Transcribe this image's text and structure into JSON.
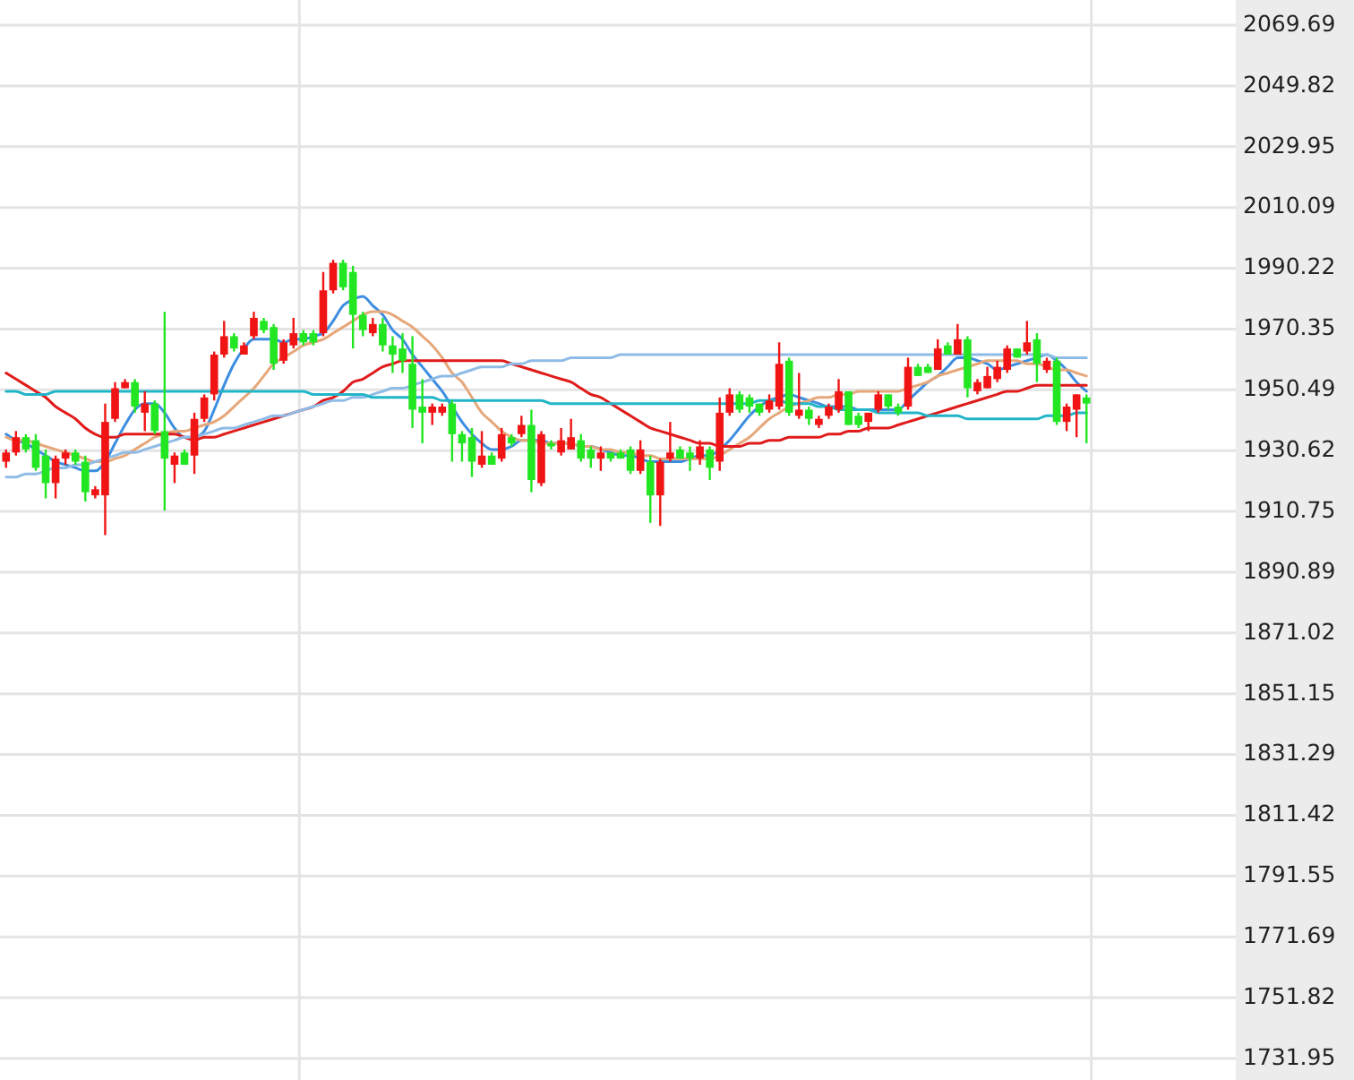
{
  "chart_data": {
    "type": "candlestick",
    "categories": [
      null,
      null,
      null,
      null,
      null,
      null,
      null,
      null,
      null,
      null,
      null,
      null,
      null,
      null,
      null,
      null,
      null,
      null,
      null,
      null,
      null,
      null,
      null,
      null,
      null,
      null,
      null,
      null,
      null,
      null,
      null,
      null,
      null,
      null,
      null,
      null,
      null,
      null,
      null,
      null,
      null,
      null,
      null,
      null,
      null,
      null,
      null,
      null,
      null,
      null,
      null,
      null,
      null,
      null,
      null,
      null,
      null,
      null,
      null,
      null,
      null,
      null,
      null,
      null,
      null,
      null,
      null,
      null,
      null,
      null,
      null,
      null,
      null,
      null,
      null,
      null,
      null,
      null,
      null,
      null,
      null,
      null,
      null,
      null,
      null,
      null,
      null,
      null,
      null,
      null,
      null,
      null,
      null,
      null,
      null,
      null,
      null,
      null,
      null,
      null,
      null,
      null,
      null,
      null,
      null,
      null,
      null,
      null,
      null,
      null
    ],
    "ohlc": [
      [
        1927,
        1931,
        1925,
        1930
      ],
      [
        1930,
        1937,
        1929,
        1935
      ],
      [
        1935,
        1936,
        1930,
        1931
      ],
      [
        1934,
        1936,
        1924,
        1925
      ],
      [
        1929,
        1931,
        1915,
        1920
      ],
      [
        1920,
        1929,
        1915,
        1928
      ],
      [
        1928,
        1931,
        1926,
        1930
      ],
      [
        1930,
        1931,
        1926,
        1927
      ],
      [
        1927,
        1929,
        1914,
        1917
      ],
      [
        1916,
        1919,
        1915,
        1918
      ],
      [
        1916,
        1946,
        1903,
        1940
      ],
      [
        1941,
        1953,
        1940,
        1951
      ],
      [
        1951,
        1954,
        1951,
        1953
      ],
      [
        1953,
        1954,
        1943,
        1945
      ],
      [
        1943,
        1950,
        1937,
        1946
      ],
      [
        1946,
        1947,
        1936,
        1937
      ],
      [
        1937,
        1976,
        1911,
        1928
      ],
      [
        1926,
        1930,
        1920,
        1929
      ],
      [
        1930,
        1931,
        1926,
        1926
      ],
      [
        1929,
        1943,
        1923,
        1941
      ],
      [
        1941,
        1949,
        1940,
        1948
      ],
      [
        1949,
        1963,
        1947,
        1962
      ],
      [
        1962,
        1973,
        1961,
        1968
      ],
      [
        1968,
        1969,
        1963,
        1964
      ],
      [
        1962,
        1966,
        1962,
        1965
      ],
      [
        1968,
        1976,
        1967,
        1974
      ],
      [
        1973,
        1974,
        1969,
        1970
      ],
      [
        1971,
        1972,
        1957,
        1959
      ],
      [
        1960,
        1967,
        1959,
        1966
      ],
      [
        1965,
        1974,
        1964,
        1969
      ],
      [
        1969,
        1970,
        1965,
        1966
      ],
      [
        1969,
        1970,
        1965,
        1966
      ],
      [
        1969,
        1989,
        1968,
        1983
      ],
      [
        1983,
        1993,
        1982,
        1992
      ],
      [
        1992,
        1993,
        1983,
        1984
      ],
      [
        1989,
        1991,
        1964,
        1975
      ],
      [
        1975,
        1976,
        1968,
        1970
      ],
      [
        1969,
        1974,
        1968,
        1972
      ],
      [
        1972,
        1974,
        1963,
        1965
      ],
      [
        1965,
        1968,
        1956,
        1962
      ],
      [
        1964,
        1969,
        1956,
        1960
      ],
      [
        1959,
        1968,
        1938,
        1944
      ],
      [
        1945,
        1954,
        1933,
        1943
      ],
      [
        1943,
        1946,
        1939,
        1945
      ],
      [
        1943,
        1946,
        1942,
        1945
      ],
      [
        1946,
        1947,
        1927,
        1936
      ],
      [
        1936,
        1937,
        1927,
        1933
      ],
      [
        1935,
        1938,
        1922,
        1927
      ],
      [
        1926,
        1937,
        1925,
        1929
      ],
      [
        1929,
        1930,
        1926,
        1926
      ],
      [
        1928,
        1938,
        1927,
        1936
      ],
      [
        1935,
        1936,
        1932,
        1933
      ],
      [
        1936,
        1942,
        1935,
        1939
      ],
      [
        1939,
        1944,
        1917,
        1921
      ],
      [
        1920,
        1937,
        1919,
        1936
      ],
      [
        1933,
        1934,
        1931,
        1932
      ],
      [
        1930,
        1938,
        1929,
        1934
      ],
      [
        1931,
        1941,
        1931,
        1935
      ],
      [
        1934,
        1936,
        1927,
        1928
      ],
      [
        1931,
        1932,
        1925,
        1928
      ],
      [
        1928,
        1932,
        1924,
        1930
      ],
      [
        1930,
        1930,
        1927,
        1928
      ],
      [
        1930,
        1931,
        1928,
        1928
      ],
      [
        1931,
        1932,
        1923,
        1924
      ],
      [
        1924,
        1934,
        1923,
        1931
      ],
      [
        1927,
        1929,
        1907,
        1916
      ],
      [
        1916,
        1928,
        1906,
        1927
      ],
      [
        1928,
        1940,
        1927,
        1930
      ],
      [
        1931,
        1932,
        1928,
        1928
      ],
      [
        1930,
        1932,
        1924,
        1928
      ],
      [
        1928,
        1934,
        1926,
        1932
      ],
      [
        1931,
        1932,
        1921,
        1925
      ],
      [
        1927,
        1948,
        1924,
        1943
      ],
      [
        1943,
        1951,
        1942,
        1949
      ],
      [
        1949,
        1950,
        1943,
        1944
      ],
      [
        1948,
        1949,
        1943,
        1945
      ],
      [
        1946,
        1946,
        1942,
        1943
      ],
      [
        1944,
        1949,
        1943,
        1947
      ],
      [
        1945,
        1966,
        1944,
        1959
      ],
      [
        1960,
        1961,
        1942,
        1943
      ],
      [
        1942,
        1956,
        1941,
        1944
      ],
      [
        1944,
        1945,
        1939,
        1941
      ],
      [
        1939,
        1942,
        1938,
        1941
      ],
      [
        1942,
        1946,
        1941,
        1945
      ],
      [
        1944,
        1954,
        1943,
        1950
      ],
      [
        1950,
        1950,
        1939,
        1939
      ],
      [
        1942,
        1943,
        1938,
        1939
      ],
      [
        1940,
        1943,
        1937,
        1943
      ],
      [
        1944,
        1950,
        1943,
        1949
      ],
      [
        1949,
        1949,
        1944,
        1945
      ],
      [
        1945,
        1946,
        1942,
        1943
      ],
      [
        1945,
        1961,
        1944,
        1958
      ],
      [
        1958,
        1959,
        1955,
        1955
      ],
      [
        1958,
        1959,
        1956,
        1956
      ],
      [
        1957,
        1967,
        1957,
        1964
      ],
      [
        1965,
        1966,
        1962,
        1962
      ],
      [
        1962,
        1972,
        1962,
        1967
      ],
      [
        1967,
        1968,
        1948,
        1951
      ],
      [
        1950,
        1954,
        1949,
        1953
      ],
      [
        1951,
        1958,
        1951,
        1955
      ],
      [
        1954,
        1960,
        1953,
        1958
      ],
      [
        1957,
        1965,
        1956,
        1964
      ],
      [
        1964,
        1964,
        1961,
        1961
      ],
      [
        1963,
        1973,
        1962,
        1966
      ],
      [
        1967,
        1969,
        1953,
        1959
      ],
      [
        1957,
        1961,
        1956,
        1960
      ],
      [
        1960,
        1961,
        1939,
        1940
      ],
      [
        1940,
        1946,
        1937,
        1945
      ],
      [
        1944,
        1949,
        1935,
        1949
      ],
      [
        1948,
        1949,
        1933,
        1946
      ]
    ],
    "colors": [
      "#f01414",
      "#f01414",
      "#22e622",
      "#22e622",
      "#22e622",
      "#f01414",
      "#f01414",
      "#22e622",
      "#22e622",
      "#f01414",
      "#f01414",
      "#f01414",
      "#f01414",
      "#22e622",
      "#f01414",
      "#22e622",
      "#22e622",
      "#f01414",
      "#22e622",
      "#f01414",
      "#f01414",
      "#f01414",
      "#f01414",
      "#22e622",
      "#f01414",
      "#f01414",
      "#22e622",
      "#22e622",
      "#f01414",
      "#f01414",
      "#22e622",
      "#22e622",
      "#f01414",
      "#f01414",
      "#22e622",
      "#22e622",
      "#22e622",
      "#f01414",
      "#22e622",
      "#22e622",
      "#22e622",
      "#22e622",
      "#22e622",
      "#f01414",
      "#f01414",
      "#22e622",
      "#22e622",
      "#22e622",
      "#f01414",
      "#22e622",
      "#f01414",
      "#22e622",
      "#f01414",
      "#22e622",
      "#f01414",
      "#22e622",
      "#f01414",
      "#f01414",
      "#22e622",
      "#22e622",
      "#f01414",
      "#22e622",
      "#22e622",
      "#22e622",
      "#f01414",
      "#22e622",
      "#f01414",
      "#f01414",
      "#22e622",
      "#22e622",
      "#f01414",
      "#22e622",
      "#f01414",
      "#f01414",
      "#22e622",
      "#22e622",
      "#22e622",
      "#f01414",
      "#f01414",
      "#22e622",
      "#f01414",
      "#22e622",
      "#f01414",
      "#f01414",
      "#f01414",
      "#22e622",
      "#22e622",
      "#f01414",
      "#f01414",
      "#22e622",
      "#22e622",
      "#f01414",
      "#22e622",
      "#22e622",
      "#f01414",
      "#22e622",
      "#f01414",
      "#22e622",
      "#f01414",
      "#f01414",
      "#f01414",
      "#f01414",
      "#22e622",
      "#f01414",
      "#22e622",
      "#f01414",
      "#22e622",
      "#f01414",
      "#f01414",
      "#22e622"
    ],
    "series": [
      {
        "type": "line",
        "color": "#3d8ee0",
        "values": [
          1936,
          1934,
          1933,
          1931,
          1929,
          1927,
          1926,
          1925,
          1924,
          1924,
          1927,
          1933,
          1939,
          1944,
          1946,
          1946,
          1943,
          1938,
          1935,
          1935,
          1937,
          1944,
          1952,
          1959,
          1964,
          1967,
          1967,
          1967,
          1966,
          1967,
          1967,
          1968,
          1969,
          1973,
          1978,
          1980,
          1981,
          1978,
          1975,
          1970,
          1967,
          1962,
          1958,
          1954,
          1950,
          1945,
          1940,
          1936,
          1933,
          1931,
          1931,
          1932,
          1934,
          1934,
          1934,
          1933,
          1933,
          1933,
          1932,
          1932,
          1931,
          1930,
          1929,
          1929,
          1928,
          1927,
          1927,
          1927,
          1927,
          1928,
          1929,
          1929,
          1931,
          1934,
          1938,
          1942,
          1945,
          1947,
          1948,
          1949,
          1948,
          1947,
          1946,
          1945,
          1945,
          1945,
          1944,
          1944,
          1944,
          1944,
          1944,
          1947,
          1950,
          1953,
          1955,
          1958,
          1961,
          1961,
          1960,
          1959,
          1957,
          1958,
          1959,
          1960,
          1961,
          1962,
          1960,
          1957,
          1953,
          1950
        ]
      },
      {
        "type": "line",
        "color": "#e6a77a",
        "values": [
          1935,
          1934,
          1934,
          1933,
          1932,
          1931,
          1930,
          1929,
          1928,
          1927,
          1927,
          1928,
          1929,
          1931,
          1933,
          1935,
          1936,
          1937,
          1937,
          1938,
          1939,
          1940,
          1942,
          1945,
          1948,
          1951,
          1955,
          1959,
          1961,
          1963,
          1965,
          1966,
          1967,
          1969,
          1971,
          1973,
          1975,
          1976,
          1976,
          1975,
          1973,
          1971,
          1968,
          1965,
          1961,
          1956,
          1953,
          1948,
          1943,
          1940,
          1937,
          1935,
          1934,
          1934,
          1933,
          1933,
          1933,
          1933,
          1932,
          1932,
          1931,
          1931,
          1930,
          1930,
          1929,
          1929,
          1928,
          1928,
          1928,
          1928,
          1928,
          1928,
          1929,
          1931,
          1933,
          1935,
          1938,
          1941,
          1943,
          1945,
          1946,
          1947,
          1948,
          1948,
          1949,
          1949,
          1950,
          1950,
          1950,
          1950,
          1950,
          1951,
          1952,
          1953,
          1955,
          1956,
          1957,
          1958,
          1959,
          1960,
          1960,
          1960,
          1960,
          1959,
          1959,
          1958,
          1957,
          1957,
          1956,
          1955
        ]
      },
      {
        "type": "line",
        "color": "#e01b1b",
        "values": [
          1956,
          1954,
          1952,
          1950,
          1948,
          1945,
          1943,
          1941,
          1938,
          1936,
          1935,
          1935,
          1936,
          1936,
          1936,
          1936,
          1936,
          1936,
          1935,
          1934,
          1935,
          1935,
          1936,
          1937,
          1938,
          1939,
          1940,
          1941,
          1942,
          1943,
          1944,
          1945,
          1947,
          1948,
          1950,
          1953,
          1954,
          1956,
          1958,
          1959,
          1960,
          1960,
          1960,
          1960,
          1960,
          1960,
          1960,
          1960,
          1960,
          1960,
          1960,
          1959,
          1958,
          1957,
          1956,
          1955,
          1954,
          1953,
          1951,
          1949,
          1948,
          1946,
          1944,
          1942,
          1940,
          1938,
          1937,
          1936,
          1935,
          1934,
          1933,
          1933,
          1932,
          1932,
          1932,
          1933,
          1933,
          1934,
          1934,
          1935,
          1935,
          1935,
          1935,
          1936,
          1936,
          1937,
          1937,
          1938,
          1938,
          1938,
          1939,
          1940,
          1941,
          1942,
          1943,
          1944,
          1945,
          1946,
          1947,
          1948,
          1949,
          1950,
          1950,
          1951,
          1952,
          1952,
          1952,
          1952,
          1952,
          1952
        ]
      },
      {
        "type": "line",
        "color": "#8fbce6",
        "values": [
          1922,
          1922,
          1923,
          1923,
          1924,
          1925,
          1925,
          1926,
          1926,
          1927,
          1928,
          1929,
          1930,
          1930,
          1931,
          1932,
          1933,
          1934,
          1935,
          1935,
          1936,
          1937,
          1938,
          1938,
          1939,
          1940,
          1941,
          1942,
          1942,
          1943,
          1944,
          1945,
          1946,
          1947,
          1947,
          1948,
          1948,
          1949,
          1950,
          1951,
          1951,
          1952,
          1953,
          1954,
          1955,
          1955,
          1956,
          1957,
          1958,
          1958,
          1958,
          1959,
          1959,
          1960,
          1960,
          1960,
          1960,
          1961,
          1961,
          1961,
          1961,
          1961,
          1962,
          1962,
          1962,
          1962,
          1962,
          1962,
          1962,
          1962,
          1962,
          1962,
          1962,
          1962,
          1962,
          1962,
          1962,
          1962,
          1962,
          1962,
          1962,
          1962,
          1962,
          1962,
          1962,
          1962,
          1962,
          1962,
          1962,
          1962,
          1962,
          1962,
          1962,
          1962,
          1962,
          1962,
          1962,
          1962,
          1962,
          1962,
          1962,
          1962,
          1962,
          1962,
          1962,
          1962,
          1961,
          1961,
          1961,
          1961
        ]
      },
      {
        "type": "line",
        "color": "#22b5c8",
        "values": [
          1950,
          1950,
          1949,
          1949,
          1949,
          1950,
          1950,
          1950,
          1950,
          1950,
          1950,
          1950,
          1950,
          1950,
          1950,
          1950,
          1950,
          1950,
          1950,
          1950,
          1950,
          1950,
          1950,
          1950,
          1950,
          1950,
          1950,
          1950,
          1950,
          1950,
          1950,
          1949,
          1949,
          1949,
          1949,
          1949,
          1949,
          1948,
          1948,
          1948,
          1948,
          1948,
          1948,
          1948,
          1947,
          1947,
          1947,
          1947,
          1947,
          1947,
          1947,
          1947,
          1947,
          1947,
          1947,
          1946,
          1946,
          1946,
          1946,
          1946,
          1946,
          1946,
          1946,
          1946,
          1946,
          1946,
          1946,
          1946,
          1946,
          1946,
          1946,
          1946,
          1946,
          1946,
          1946,
          1946,
          1947,
          1947,
          1947,
          1946,
          1946,
          1946,
          1945,
          1945,
          1944,
          1944,
          1944,
          1944,
          1943,
          1943,
          1943,
          1943,
          1943,
          1942,
          1942,
          1942,
          1942,
          1941,
          1941,
          1941,
          1941,
          1941,
          1941,
          1941,
          1941,
          1942,
          1942,
          1942,
          1943,
          1943
        ]
      }
    ],
    "ylim": [
      1731.95,
      2069.69
    ],
    "yticks": [
      2069.69,
      2049.82,
      2029.95,
      2010.09,
      1990.22,
      1970.35,
      1950.49,
      1930.62,
      1910.75,
      1890.89,
      1871.02,
      1851.15,
      1831.29,
      1811.42,
      1791.55,
      1771.69,
      1751.82,
      1731.95
    ],
    "grid": "y"
  }
}
